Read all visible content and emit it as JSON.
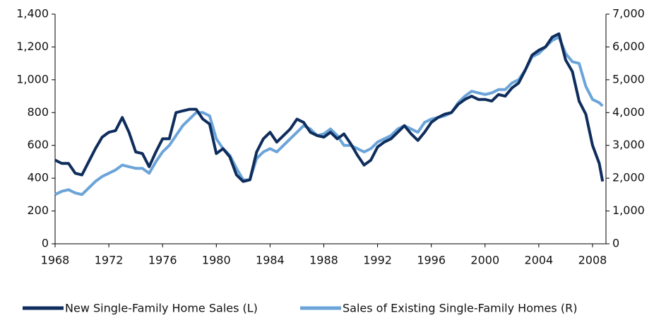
{
  "chart_data": {
    "type": "line",
    "x": [
      1968,
      1968.5,
      1969,
      1969.5,
      1970,
      1970.5,
      1971,
      1971.5,
      1972,
      1972.5,
      1973,
      1973.5,
      1974,
      1974.5,
      1975,
      1975.5,
      1976,
      1976.5,
      1977,
      1977.5,
      1978,
      1978.5,
      1979,
      1979.5,
      1980,
      1980.5,
      1981,
      1981.5,
      1982,
      1982.5,
      1983,
      1983.5,
      1984,
      1984.5,
      1985,
      1985.5,
      1986,
      1986.5,
      1987,
      1987.5,
      1988,
      1988.5,
      1989,
      1989.5,
      1990,
      1990.5,
      1991,
      1991.5,
      1992,
      1992.5,
      1993,
      1993.5,
      1994,
      1994.5,
      1995,
      1995.5,
      1996,
      1996.5,
      1997,
      1997.5,
      1998,
      1998.5,
      1999,
      1999.5,
      2000,
      2000.5,
      2001,
      2001.5,
      2002,
      2002.5,
      2003,
      2003.5,
      2004,
      2004.5,
      2005,
      2005.5,
      2006,
      2006.5,
      2007,
      2007.5,
      2008,
      2008.5,
      2008.75
    ],
    "series": [
      {
        "name": "New Single-Family Home Sales (L)",
        "color": "#0f2d5c",
        "axis": "y",
        "values": [
          510,
          490,
          490,
          430,
          420,
          500,
          580,
          650,
          680,
          690,
          770,
          680,
          560,
          550,
          470,
          560,
          640,
          640,
          800,
          810,
          820,
          820,
          760,
          730,
          550,
          580,
          530,
          420,
          380,
          390,
          560,
          640,
          680,
          620,
          660,
          700,
          760,
          740,
          680,
          660,
          650,
          680,
          640,
          670,
          610,
          540,
          480,
          510,
          590,
          620,
          640,
          680,
          720,
          670,
          630,
          680,
          740,
          770,
          790,
          800,
          850,
          880,
          900,
          880,
          880,
          870,
          910,
          900,
          950,
          980,
          1060,
          1150,
          1180,
          1200,
          1260,
          1280,
          1120,
          1050,
          870,
          790,
          600,
          490,
          380
        ]
      },
      {
        "name": "Sales of Existing Single-Family Homes (R)",
        "color": "#6ba4d9",
        "axis": "y2",
        "values": [
          1500,
          1600,
          1650,
          1550,
          1500,
          1700,
          1900,
          2050,
          2150,
          2250,
          2400,
          2350,
          2300,
          2300,
          2150,
          2500,
          2800,
          3000,
          3300,
          3600,
          3800,
          4000,
          4000,
          3900,
          3200,
          2900,
          2700,
          2300,
          1950,
          1950,
          2600,
          2800,
          2900,
          2800,
          3000,
          3200,
          3400,
          3600,
          3500,
          3300,
          3350,
          3500,
          3300,
          3000,
          3000,
          2900,
          2800,
          2900,
          3100,
          3200,
          3300,
          3500,
          3600,
          3500,
          3400,
          3700,
          3800,
          3850,
          3900,
          4000,
          4300,
          4500,
          4650,
          4600,
          4550,
          4600,
          4700,
          4700,
          4900,
          5000,
          5300,
          5700,
          5800,
          6000,
          6200,
          6300,
          5800,
          5550,
          5500,
          4800,
          4400,
          4300,
          4200
        ]
      }
    ],
    "xlim": [
      1968,
      2009
    ],
    "xticks": [
      1968,
      1972,
      1976,
      1980,
      1984,
      1988,
      1992,
      1996,
      2000,
      2004,
      2008
    ],
    "ylim": [
      0,
      1400
    ],
    "yticks": [
      0,
      200,
      400,
      600,
      800,
      {
        "value": 1000,
        "label": "1,000"
      },
      {
        "value": 1200,
        "label": "1,200"
      },
      {
        "value": 1400,
        "label": "1,400"
      }
    ],
    "y2lim": [
      0,
      7000
    ],
    "y2ticks": [
      0,
      {
        "value": 1000,
        "label": "1,000"
      },
      {
        "value": 2000,
        "label": "2,000"
      },
      {
        "value": 3000,
        "label": "3,000"
      },
      {
        "value": 4000,
        "label": "4,000"
      },
      {
        "value": 5000,
        "label": "5,000"
      },
      {
        "value": 6000,
        "label": "6,000"
      },
      {
        "value": 7000,
        "label": "7,000"
      }
    ],
    "legend": "bottom"
  }
}
